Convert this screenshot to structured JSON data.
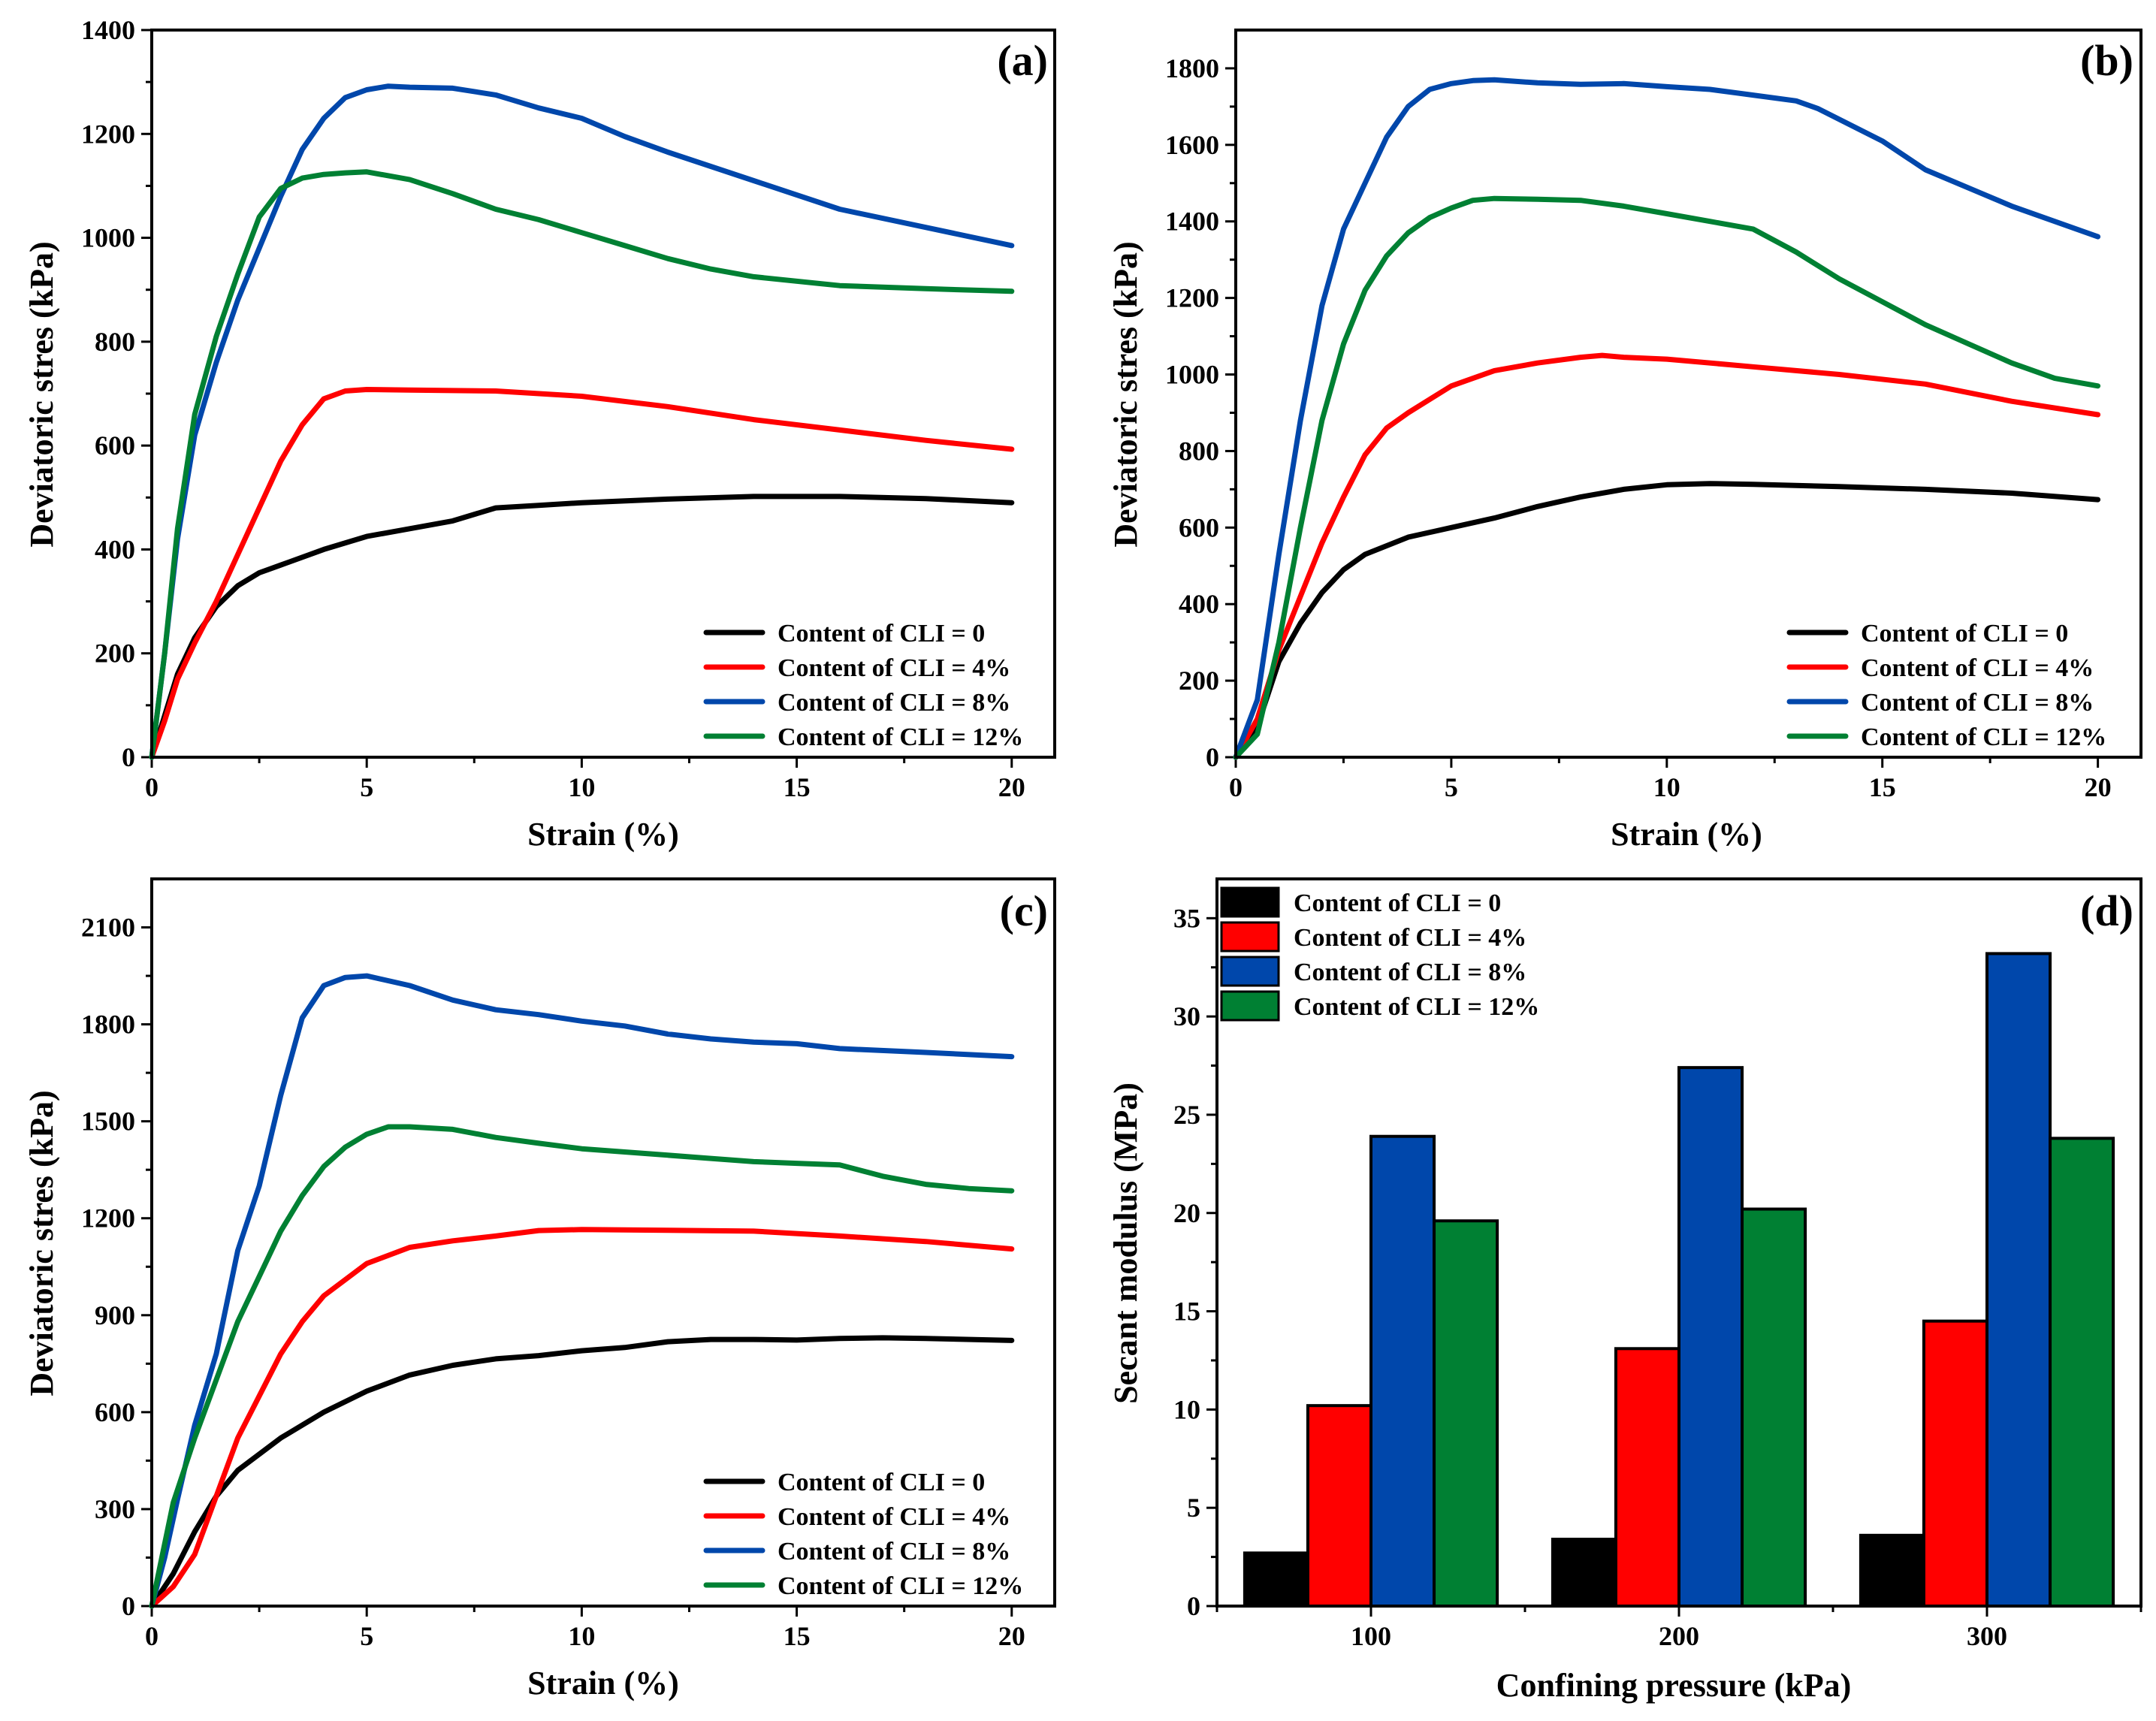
{
  "colors": {
    "black": "#000000",
    "red": "#ff0000",
    "blue": "#0047ab",
    "green": "#008033"
  },
  "chart_data": [
    {
      "panel": "(a)",
      "type": "line",
      "xlabel": "Strain (%)",
      "ylabel": "Deviatoric stres (kPa)",
      "xlim": [
        0,
        21
      ],
      "ylim": [
        0,
        1400
      ],
      "xticks": [
        0,
        5,
        10,
        15,
        20
      ],
      "yticks": [
        0,
        200,
        400,
        600,
        800,
        1000,
        1200,
        1400
      ],
      "legend_position": "bottom-right",
      "series": [
        {
          "name": "Content of CLI = 0",
          "color": "#000000",
          "x": [
            0,
            0.3,
            0.6,
            1,
            1.5,
            2,
            2.5,
            3,
            4,
            5,
            6,
            7,
            8,
            9,
            10,
            12,
            14,
            16,
            18,
            20
          ],
          "y": [
            0,
            80,
            160,
            230,
            290,
            330,
            355,
            370,
            400,
            425,
            440,
            455,
            480,
            485,
            490,
            497,
            502,
            502,
            498,
            490
          ]
        },
        {
          "name": "Content of CLI = 4%",
          "color": "#ff0000",
          "x": [
            0,
            0.3,
            0.6,
            1,
            1.5,
            2,
            2.5,
            3,
            3.5,
            4,
            4.5,
            5,
            6,
            8,
            10,
            12,
            14,
            16,
            18,
            20
          ],
          "y": [
            0,
            70,
            150,
            220,
            300,
            390,
            480,
            570,
            640,
            690,
            705,
            708,
            707,
            705,
            695,
            675,
            650,
            630,
            610,
            593
          ]
        },
        {
          "name": "Content of CLI = 8%",
          "color": "#0047ab",
          "x": [
            0,
            0.3,
            0.6,
            1,
            1.5,
            2,
            2.5,
            3,
            3.5,
            4,
            4.5,
            5,
            5.5,
            6,
            7,
            8,
            9,
            10,
            11,
            12,
            14,
            16,
            18,
            20
          ],
          "y": [
            0,
            200,
            420,
            620,
            760,
            880,
            980,
            1080,
            1170,
            1230,
            1270,
            1285,
            1292,
            1290,
            1288,
            1275,
            1250,
            1230,
            1195,
            1165,
            1110,
            1055,
            1020,
            985
          ]
        },
        {
          "name": "Content of CLI = 12%",
          "color": "#008033",
          "x": [
            0,
            0.3,
            0.6,
            1,
            1.5,
            2,
            2.5,
            3,
            3.5,
            4,
            4.5,
            5,
            6,
            7,
            8,
            9,
            10,
            11,
            12,
            13,
            14,
            16,
            18,
            20
          ],
          "y": [
            0,
            200,
            440,
            660,
            810,
            930,
            1040,
            1095,
            1115,
            1122,
            1125,
            1127,
            1112,
            1085,
            1055,
            1035,
            1010,
            985,
            960,
            940,
            925,
            908,
            902,
            897
          ]
        }
      ]
    },
    {
      "panel": "(b)",
      "type": "line",
      "xlabel": "Strain (%)",
      "ylabel": "Deviatoric stres (kPa)",
      "xlim": [
        0,
        21
      ],
      "ylim": [
        0,
        1900
      ],
      "xticks": [
        0,
        5,
        10,
        15,
        20
      ],
      "yticks": [
        0,
        200,
        400,
        600,
        800,
        1000,
        1200,
        1400,
        1600,
        1800
      ],
      "legend_position": "bottom-right",
      "series": [
        {
          "name": "Content of CLI = 0",
          "color": "#000000",
          "x": [
            0,
            0.5,
            1,
            1.5,
            2,
            2.5,
            3,
            4,
            5,
            6,
            7,
            8,
            9,
            10,
            11,
            12,
            14,
            16,
            18,
            20
          ],
          "y": [
            0,
            80,
            250,
            350,
            430,
            490,
            530,
            575,
            600,
            625,
            655,
            680,
            700,
            712,
            715,
            713,
            707,
            700,
            690,
            673
          ]
        },
        {
          "name": "Content of CLI = 4%",
          "color": "#ff0000",
          "x": [
            0,
            0.5,
            1,
            1.5,
            2,
            2.5,
            3,
            3.5,
            4,
            5,
            6,
            7,
            8,
            8.5,
            9,
            10,
            12,
            14,
            16,
            18,
            20
          ],
          "y": [
            0,
            100,
            280,
            420,
            560,
            680,
            790,
            860,
            900,
            970,
            1010,
            1030,
            1045,
            1050,
            1045,
            1040,
            1020,
            1000,
            975,
            930,
            895
          ]
        },
        {
          "name": "Content of CLI = 8%",
          "color": "#0047ab",
          "x": [
            0,
            0.5,
            1,
            1.5,
            2,
            2.5,
            3,
            3.5,
            4,
            4.5,
            5,
            5.5,
            6,
            7,
            8,
            9,
            10,
            11,
            12,
            13,
            13.5,
            15,
            16,
            18,
            20
          ],
          "y": [
            0,
            150,
            530,
            880,
            1180,
            1380,
            1500,
            1620,
            1700,
            1745,
            1760,
            1768,
            1770,
            1762,
            1758,
            1760,
            1752,
            1745,
            1730,
            1715,
            1695,
            1610,
            1535,
            1440,
            1360
          ]
        },
        {
          "name": "Content of CLI = 12%",
          "color": "#008033",
          "x": [
            0,
            0.5,
            1,
            1.5,
            2,
            2.5,
            3,
            3.5,
            4,
            4.5,
            5,
            5.5,
            6,
            7,
            8,
            9,
            10,
            11,
            12,
            13,
            14,
            15,
            16,
            17,
            18,
            19,
            20
          ],
          "y": [
            0,
            60,
            300,
            600,
            880,
            1080,
            1220,
            1310,
            1370,
            1410,
            1435,
            1455,
            1460,
            1458,
            1455,
            1440,
            1420,
            1400,
            1380,
            1320,
            1250,
            1190,
            1130,
            1080,
            1030,
            990,
            970
          ]
        }
      ]
    },
    {
      "panel": "(c)",
      "type": "line",
      "xlabel": "Strain (%)",
      "ylabel": "Deviatoric stres (kPa)",
      "xlim": [
        0,
        21
      ],
      "ylim": [
        0,
        2250
      ],
      "xticks": [
        0,
        5,
        10,
        15,
        20
      ],
      "yticks": [
        0,
        300,
        600,
        900,
        1200,
        1500,
        1800,
        2100
      ],
      "legend_position": "bottom-right",
      "series": [
        {
          "name": "Content of CLI = 0",
          "color": "#000000",
          "x": [
            0,
            0.5,
            1,
            1.5,
            2,
            2.5,
            3,
            4,
            5,
            6,
            7,
            8,
            9,
            10,
            11,
            12,
            13,
            14,
            15,
            16,
            17,
            18,
            20
          ],
          "y": [
            0,
            100,
            230,
            340,
            420,
            470,
            520,
            600,
            665,
            715,
            745,
            765,
            775,
            790,
            800,
            818,
            825,
            825,
            823,
            828,
            830,
            828,
            822
          ]
        },
        {
          "name": "Content of CLI = 4%",
          "color": "#ff0000",
          "x": [
            0,
            0.5,
            1,
            1.5,
            2,
            2.5,
            3,
            3.5,
            4,
            5,
            6,
            7,
            8,
            9,
            10,
            12,
            14,
            16,
            18,
            20
          ],
          "y": [
            0,
            60,
            160,
            340,
            520,
            650,
            780,
            880,
            960,
            1060,
            1110,
            1130,
            1145,
            1162,
            1165,
            1163,
            1160,
            1145,
            1128,
            1105
          ]
        },
        {
          "name": "Content of CLI = 8%",
          "color": "#0047ab",
          "x": [
            0,
            0.3,
            0.6,
            1,
            1.5,
            2,
            2.5,
            3,
            3.5,
            4,
            4.5,
            5,
            6,
            7,
            8,
            9,
            10,
            11,
            12,
            13,
            14,
            15,
            16,
            18,
            20
          ],
          "y": [
            0,
            150,
            330,
            560,
            780,
            1100,
            1300,
            1580,
            1820,
            1920,
            1945,
            1950,
            1920,
            1875,
            1845,
            1830,
            1810,
            1795,
            1770,
            1755,
            1745,
            1740,
            1725,
            1713,
            1700
          ]
        },
        {
          "name": "Content of CLI = 12%",
          "color": "#008033",
          "x": [
            0,
            0.5,
            1,
            1.5,
            2,
            2.5,
            3,
            3.5,
            4,
            4.5,
            5,
            5.5,
            6,
            7,
            8,
            9,
            10,
            11,
            12,
            13,
            14,
            15,
            16,
            17,
            18,
            19,
            20
          ],
          "y": [
            0,
            320,
            520,
            700,
            880,
            1020,
            1160,
            1270,
            1360,
            1420,
            1460,
            1483,
            1483,
            1475,
            1450,
            1432,
            1415,
            1405,
            1395,
            1385,
            1375,
            1370,
            1365,
            1330,
            1305,
            1292,
            1285
          ]
        }
      ]
    },
    {
      "panel": "(d)",
      "type": "bar",
      "xlabel": "Confining pressure (kPa)",
      "ylabel": "Secant modulus (MPa)",
      "ylim": [
        0,
        37
      ],
      "yticks": [
        0,
        5,
        10,
        15,
        20,
        25,
        30,
        35
      ],
      "categories": [
        "100",
        "200",
        "300"
      ],
      "legend_position": "top-left",
      "series": [
        {
          "name": "Content of CLI = 0",
          "color": "#000000",
          "values": [
            2.7,
            3.4,
            3.6
          ]
        },
        {
          "name": "Content of CLI = 4%",
          "color": "#ff0000",
          "values": [
            10.2,
            13.1,
            14.5
          ]
        },
        {
          "name": "Content of CLI = 8%",
          "color": "#0047ab",
          "values": [
            23.9,
            27.4,
            33.2
          ]
        },
        {
          "name": "Content of CLI = 12%",
          "color": "#008033",
          "values": [
            19.6,
            20.2,
            23.8
          ]
        }
      ]
    }
  ]
}
